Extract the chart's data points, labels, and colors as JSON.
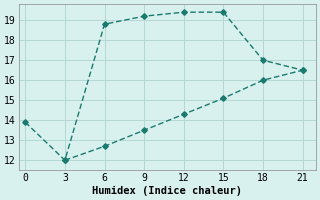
{
  "line1_x": [
    0,
    3,
    6,
    9,
    12,
    15,
    18,
    21
  ],
  "line1_y": [
    13.9,
    12.0,
    18.8,
    19.2,
    19.4,
    19.4,
    17.0,
    16.5
  ],
  "line2_x": [
    3,
    6,
    9,
    12,
    15,
    18,
    21
  ],
  "line2_y": [
    12.0,
    12.7,
    13.5,
    14.3,
    15.1,
    16.0,
    16.5
  ],
  "line_color": "#1a7a6e",
  "bg_color": "#d8f0ee",
  "grid_color": "#b5d8d4",
  "xlabel": "Humidex (Indice chaleur)",
  "xlim": [
    -0.5,
    22
  ],
  "ylim": [
    11.5,
    19.8
  ],
  "xticks": [
    0,
    3,
    6,
    9,
    12,
    15,
    18,
    21
  ],
  "yticks": [
    12,
    13,
    14,
    15,
    16,
    17,
    18,
    19
  ],
  "xlabel_fontsize": 7.5,
  "tick_fontsize": 7
}
